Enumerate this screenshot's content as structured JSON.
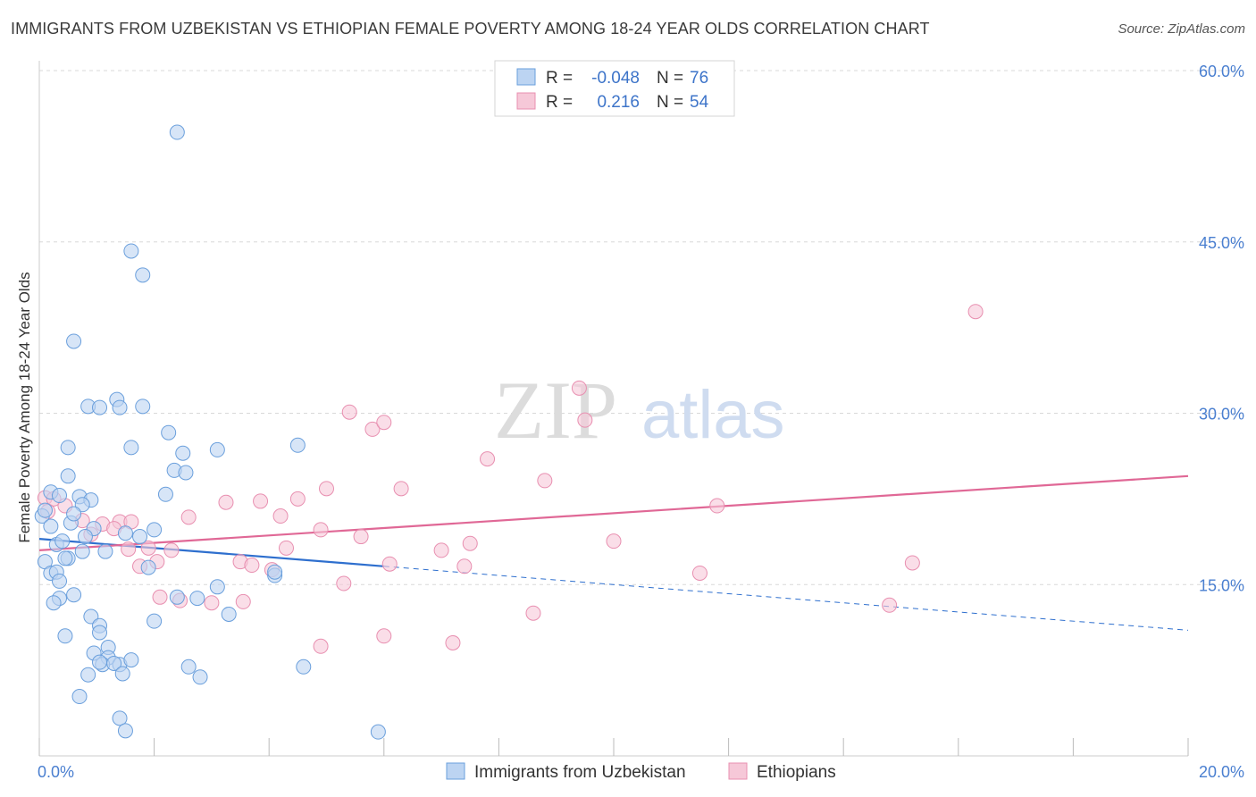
{
  "title": "IMMIGRANTS FROM UZBEKISTAN VS ETHIOPIAN FEMALE POVERTY AMONG 18-24 YEAR OLDS CORRELATION CHART",
  "source": "Source: ZipAtlas.com",
  "watermark": {
    "zip": "ZIP",
    "atlas": "atlas"
  },
  "colors": {
    "blue_fill": "#bcd4f2",
    "blue_stroke": "#6a9fdc",
    "blue_line": "#2e6fce",
    "pink_fill": "#f6c8d8",
    "pink_stroke": "#e88fb0",
    "pink_line": "#e06896",
    "tick_text": "#4a7fd0",
    "grid": "#d8d8d8"
  },
  "legend": {
    "rows": [
      {
        "r_label": "R =",
        "r_value": "-0.048",
        "n_label": "N =",
        "n_value": "76"
      },
      {
        "r_label": "R =",
        "r_value": "0.216",
        "n_label": "N =",
        "n_value": "54"
      }
    ]
  },
  "chart_data": {
    "type": "scatter",
    "title": "IMMIGRANTS FROM UZBEKISTAN VS ETHIOPIAN FEMALE POVERTY AMONG 18-24 YEAR OLDS CORRELATION CHART",
    "xlabel": "",
    "ylabel": "Female Poverty Among 18-24 Year Olds",
    "xlim": [
      0,
      20
    ],
    "ylim": [
      0,
      60
    ],
    "x_ticks": [
      "0.0%",
      "20.0%"
    ],
    "y_ticks": [
      {
        "value": 15,
        "label": "15.0%"
      },
      {
        "value": 30,
        "label": "30.0%"
      },
      {
        "value": 45,
        "label": "45.0%"
      },
      {
        "value": 60,
        "label": "60.0%"
      }
    ],
    "grid": "horizontal dashed",
    "legend_position": "top-center",
    "series": [
      {
        "name": "Immigrants from Uzbekistan",
        "color": "blue",
        "r": -0.048,
        "n": 76,
        "trend": {
          "x0": 0,
          "y0": 19.0,
          "x1": 6.0,
          "y1": 16.6,
          "dashed_to_x": 20,
          "dashed_to_y": 11.0
        },
        "points": [
          [
            2.4,
            54.6
          ],
          [
            1.6,
            44.2
          ],
          [
            1.8,
            42.1
          ],
          [
            0.6,
            36.3
          ],
          [
            0.85,
            30.6
          ],
          [
            1.35,
            31.2
          ],
          [
            1.05,
            30.5
          ],
          [
            1.4,
            30.5
          ],
          [
            1.8,
            30.6
          ],
          [
            2.25,
            28.3
          ],
          [
            0.5,
            27.0
          ],
          [
            1.6,
            27.0
          ],
          [
            2.5,
            26.5
          ],
          [
            3.1,
            26.8
          ],
          [
            4.5,
            27.2
          ],
          [
            0.5,
            24.5
          ],
          [
            2.35,
            25.0
          ],
          [
            2.55,
            24.8
          ],
          [
            0.2,
            23.1
          ],
          [
            0.35,
            22.8
          ],
          [
            0.7,
            22.7
          ],
          [
            0.9,
            22.4
          ],
          [
            0.75,
            22.0
          ],
          [
            2.2,
            22.9
          ],
          [
            0.05,
            21.0
          ],
          [
            0.55,
            20.4
          ],
          [
            0.95,
            19.9
          ],
          [
            1.5,
            19.5
          ],
          [
            2.0,
            19.8
          ],
          [
            0.2,
            20.1
          ],
          [
            0.8,
            19.2
          ],
          [
            0.3,
            18.5
          ],
          [
            1.15,
            17.9
          ],
          [
            0.75,
            17.9
          ],
          [
            0.5,
            17.3
          ],
          [
            0.1,
            17.0
          ],
          [
            0.45,
            17.3
          ],
          [
            1.75,
            19.2
          ],
          [
            1.9,
            16.5
          ],
          [
            0.2,
            16.0
          ],
          [
            0.3,
            16.1
          ],
          [
            0.35,
            15.3
          ],
          [
            3.1,
            14.8
          ],
          [
            4.1,
            15.8
          ],
          [
            4.1,
            16.1
          ],
          [
            0.6,
            14.1
          ],
          [
            0.35,
            13.8
          ],
          [
            0.25,
            13.4
          ],
          [
            2.4,
            13.9
          ],
          [
            2.75,
            13.8
          ],
          [
            0.9,
            12.2
          ],
          [
            3.3,
            12.4
          ],
          [
            2.0,
            11.8
          ],
          [
            1.05,
            11.4
          ],
          [
            1.05,
            10.8
          ],
          [
            0.45,
            10.5
          ],
          [
            1.2,
            9.5
          ],
          [
            0.95,
            9.0
          ],
          [
            1.2,
            8.6
          ],
          [
            1.4,
            8.0
          ],
          [
            1.1,
            8.0
          ],
          [
            1.3,
            8.1
          ],
          [
            1.6,
            8.4
          ],
          [
            1.05,
            8.2
          ],
          [
            2.6,
            7.8
          ],
          [
            4.6,
            7.8
          ],
          [
            0.85,
            7.1
          ],
          [
            1.45,
            7.2
          ],
          [
            2.8,
            6.9
          ],
          [
            0.7,
            5.2
          ],
          [
            1.4,
            3.3
          ],
          [
            1.5,
            2.2
          ],
          [
            5.9,
            2.1
          ],
          [
            0.1,
            21.5
          ],
          [
            0.6,
            21.2
          ],
          [
            0.4,
            18.8
          ]
        ]
      },
      {
        "name": "Ethiopians",
        "color": "pink",
        "r": 0.216,
        "n": 54,
        "trend": {
          "x0": 0,
          "y0": 18.0,
          "x1": 20,
          "y1": 24.5
        },
        "points": [
          [
            16.3,
            38.9
          ],
          [
            9.4,
            32.2
          ],
          [
            9.5,
            29.4
          ],
          [
            5.4,
            30.1
          ],
          [
            5.8,
            28.6
          ],
          [
            6.0,
            29.2
          ],
          [
            7.8,
            26.0
          ],
          [
            8.8,
            24.1
          ],
          [
            6.3,
            23.4
          ],
          [
            5.0,
            23.4
          ],
          [
            0.1,
            22.6
          ],
          [
            0.25,
            22.5
          ],
          [
            0.45,
            21.9
          ],
          [
            3.25,
            22.2
          ],
          [
            3.85,
            22.3
          ],
          [
            4.5,
            22.5
          ],
          [
            11.8,
            21.9
          ],
          [
            0.15,
            21.4
          ],
          [
            2.6,
            20.9
          ],
          [
            0.75,
            20.6
          ],
          [
            1.1,
            20.3
          ],
          [
            1.4,
            20.5
          ],
          [
            4.2,
            21.0
          ],
          [
            1.6,
            20.5
          ],
          [
            4.9,
            19.8
          ],
          [
            1.3,
            19.9
          ],
          [
            0.9,
            19.4
          ],
          [
            5.6,
            19.2
          ],
          [
            10.0,
            18.8
          ],
          [
            7.5,
            18.6
          ],
          [
            4.3,
            18.2
          ],
          [
            7.0,
            18.0
          ],
          [
            1.55,
            18.1
          ],
          [
            2.3,
            18.0
          ],
          [
            1.9,
            18.2
          ],
          [
            2.05,
            17.0
          ],
          [
            3.5,
            17.0
          ],
          [
            3.7,
            16.7
          ],
          [
            6.1,
            16.8
          ],
          [
            7.4,
            16.6
          ],
          [
            1.75,
            16.6
          ],
          [
            4.05,
            16.3
          ],
          [
            11.5,
            16.0
          ],
          [
            15.2,
            16.9
          ],
          [
            5.3,
            15.1
          ],
          [
            2.1,
            13.9
          ],
          [
            2.45,
            13.6
          ],
          [
            3.0,
            13.4
          ],
          [
            3.55,
            13.5
          ],
          [
            8.6,
            12.5
          ],
          [
            14.8,
            13.2
          ],
          [
            4.9,
            9.6
          ],
          [
            6.0,
            10.5
          ],
          [
            7.2,
            9.9
          ]
        ]
      }
    ]
  },
  "bottom_legend": [
    {
      "label": "Immigrants from Uzbekistan",
      "color": "blue"
    },
    {
      "label": "Ethiopians",
      "color": "pink"
    }
  ]
}
